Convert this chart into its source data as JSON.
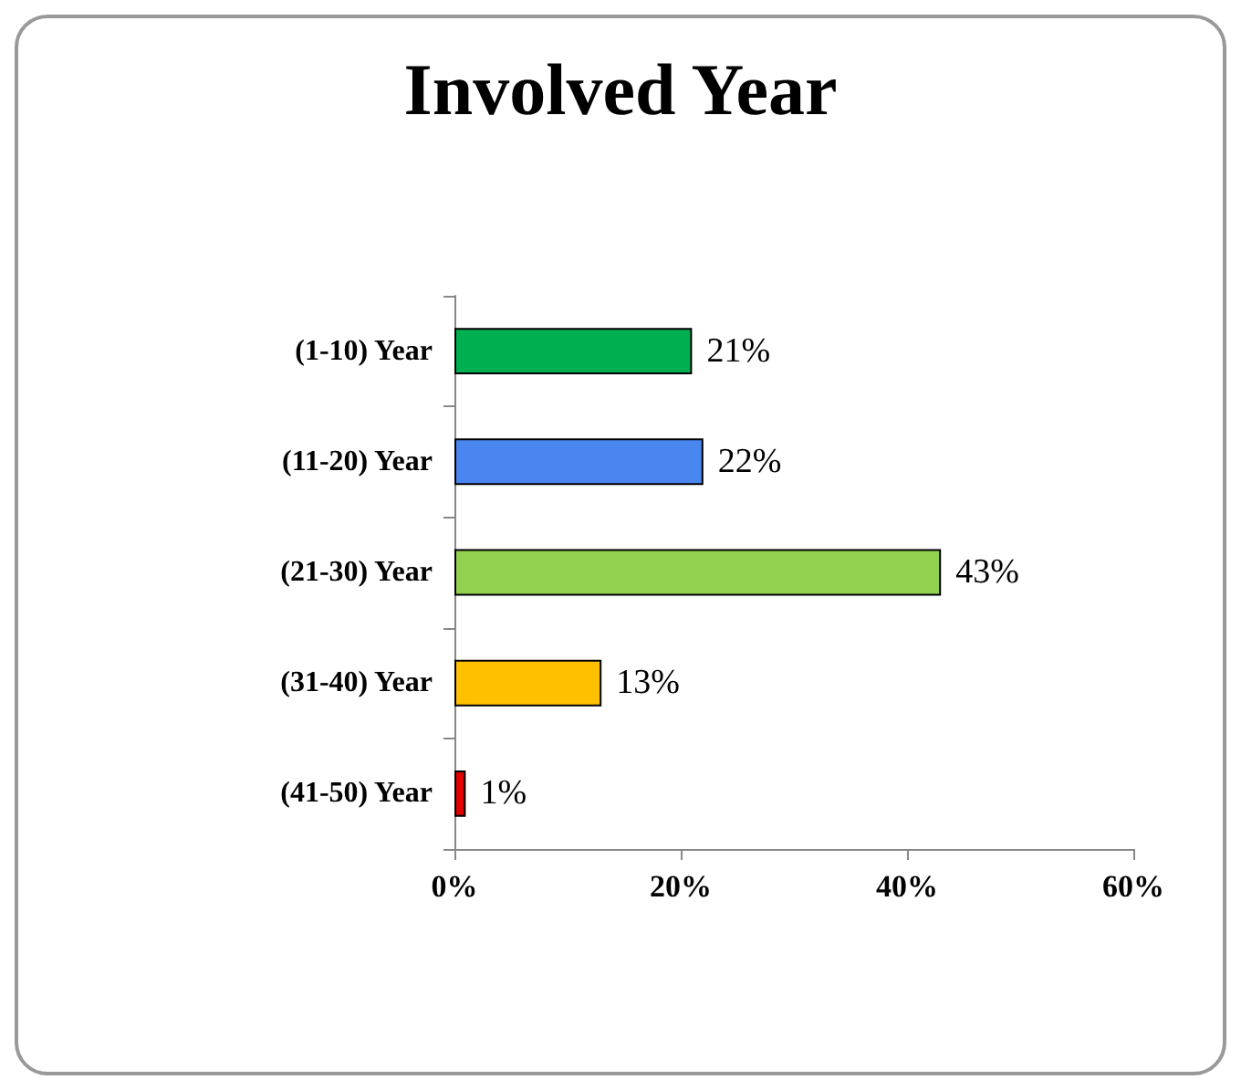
{
  "chart_data": {
    "type": "bar",
    "orientation": "horizontal",
    "title": "Involved Year",
    "categories": [
      "(1-10) Year",
      "(11-20) Year",
      "(21-30) Year",
      "(31-40) Year",
      "(41-50) Year"
    ],
    "values": [
      21,
      22,
      43,
      13,
      1
    ],
    "colors": [
      "#00b050",
      "#4a86f0",
      "#92d050",
      "#ffc000",
      "#e00000"
    ],
    "value_labels": [
      "21%",
      "22%",
      "43%",
      "13%",
      "1%"
    ],
    "xlim": [
      0,
      60
    ],
    "xticks": [
      {
        "value": 0,
        "label": "0%"
      },
      {
        "value": 20,
        "label": "20%"
      },
      {
        "value": 40,
        "label": "40%"
      },
      {
        "value": 60,
        "label": "60%"
      }
    ],
    "grid": false
  }
}
